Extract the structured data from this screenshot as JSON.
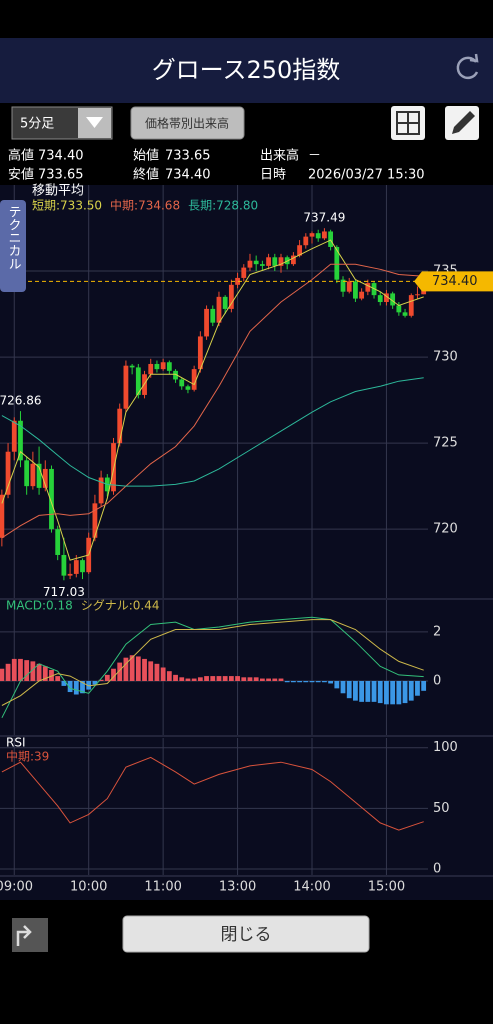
{
  "header": {
    "title": "グロース250指数"
  },
  "toolbar": {
    "period": "5分足",
    "volume_button": "価格帯別出来高"
  },
  "quote": [
    [
      {
        "label": "高値",
        "value": "734.40"
      },
      {
        "label": "始値",
        "value": "733.65"
      },
      {
        "label": "出来高",
        "value": "－"
      }
    ],
    [
      {
        "label": "安値",
        "value": "733.65"
      },
      {
        "label": "終値",
        "value": "734.40"
      },
      {
        "label": "日時",
        "value": "2026/03/27 15:30"
      }
    ]
  ],
  "side_tab": "テクニカル",
  "close_button": "閉じる",
  "chart_data": [
    {
      "type": "candlestick",
      "title": "移動平均",
      "xlim": [
        -0.3,
        68.7
      ],
      "xticks": [
        {
          "value": 2,
          "label": "09:00"
        },
        {
          "value": 14,
          "label": "10:00"
        },
        {
          "value": 26,
          "label": "11:00"
        },
        {
          "value": 38,
          "label": "13:00"
        },
        {
          "value": 50,
          "label": "14:00"
        },
        {
          "value": 62,
          "label": "15:00"
        }
      ],
      "ylim": [
        716,
        740
      ],
      "yticks": [
        720,
        725,
        730,
        735
      ],
      "grid": true,
      "colors": {
        "up": "#f04a2e",
        "down": "#27d23a"
      },
      "open": [
        719.5,
        722.0,
        724.5,
        726.3,
        724.0,
        722.5,
        723.8,
        722.4,
        723.5,
        720.0,
        718.5,
        717.3,
        717.4,
        718.2,
        717.5,
        719.5,
        721.5,
        723.0,
        722.2,
        725.0,
        727.0,
        729.5,
        729.4,
        727.8,
        729.0,
        729.6,
        729.3,
        729.7,
        729.2,
        728.7,
        728.3,
        728.1,
        729.3,
        731.2,
        732.8,
        732.0,
        733.5,
        732.8,
        734.2,
        734.6,
        735.2,
        735.6,
        735.4,
        735.3,
        735.8,
        735.3,
        735.8,
        735.4,
        735.9,
        736.5,
        737.0,
        737.2,
        736.9,
        737.3,
        736.4,
        734.5,
        733.8,
        734.4,
        733.4,
        733.8,
        734.3,
        733.6,
        733.2,
        733.7,
        733.0,
        732.6,
        732.4,
        733.6,
        733.65
      ],
      "high": [
        722.3,
        725.0,
        726.5,
        726.86,
        724.2,
        724.5,
        724.8,
        724.0,
        723.7,
        720.2,
        719.5,
        718.0,
        718.5,
        718.3,
        719.8,
        722.0,
        723.4,
        723.2,
        725.3,
        727.3,
        729.8,
        729.6,
        729.6,
        729.2,
        729.9,
        729.8,
        729.9,
        729.8,
        729.3,
        728.8,
        728.4,
        729.5,
        731.5,
        733.0,
        733.0,
        733.8,
        733.6,
        734.5,
        734.9,
        735.4,
        736.0,
        735.9,
        735.6,
        736.0,
        736.0,
        736.0,
        735.9,
        736.1,
        736.8,
        737.2,
        737.3,
        737.4,
        737.49,
        737.4,
        736.5,
        734.7,
        734.6,
        734.5,
        734.0,
        734.5,
        734.4,
        733.8,
        733.9,
        733.8,
        733.2,
        732.8,
        733.7,
        734.1,
        734.4
      ],
      "low": [
        719.0,
        721.8,
        724.0,
        723.6,
        722.0,
        722.3,
        722.0,
        722.2,
        719.8,
        718.2,
        717.03,
        717.1,
        717.2,
        717.1,
        717.4,
        719.3,
        721.3,
        721.9,
        722.0,
        724.8,
        726.8,
        729.0,
        727.6,
        727.6,
        728.8,
        729.1,
        729.2,
        729.0,
        728.5,
        728.1,
        727.9,
        728.0,
        729.1,
        731.0,
        731.8,
        731.8,
        732.5,
        732.6,
        734.0,
        734.4,
        735.0,
        735.0,
        735.0,
        735.1,
        735.0,
        734.9,
        735.1,
        735.3,
        735.8,
        736.3,
        736.6,
        736.7,
        736.8,
        736.2,
        734.3,
        733.5,
        733.7,
        733.2,
        733.3,
        733.6,
        733.4,
        733.0,
        733.0,
        732.8,
        732.4,
        732.3,
        732.3,
        733.4,
        733.65
      ],
      "close": [
        722.0,
        724.5,
        726.3,
        724.0,
        722.5,
        723.8,
        722.4,
        723.5,
        720.0,
        718.5,
        717.3,
        717.4,
        718.2,
        717.5,
        719.5,
        721.5,
        723.0,
        722.2,
        725.0,
        727.0,
        729.5,
        729.4,
        727.8,
        729.0,
        729.6,
        729.3,
        729.7,
        729.2,
        728.7,
        728.3,
        728.1,
        729.3,
        731.2,
        732.8,
        732.0,
        733.5,
        732.8,
        734.2,
        734.6,
        735.2,
        735.6,
        735.4,
        735.3,
        735.8,
        735.3,
        735.8,
        735.4,
        735.9,
        736.5,
        737.0,
        737.2,
        736.9,
        737.3,
        736.4,
        734.5,
        733.8,
        734.4,
        733.4,
        733.8,
        734.3,
        733.6,
        733.2,
        733.7,
        733.0,
        732.6,
        732.4,
        733.6,
        733.65,
        734.4
      ],
      "series": [
        {
          "name": "短期:733.50",
          "color": "#d8d24a",
          "x": [
            0,
            3,
            6,
            9,
            11,
            14,
            17,
            20,
            24,
            28,
            31,
            35,
            40,
            45,
            50,
            53,
            57,
            61,
            64,
            68
          ],
          "values": [
            721.5,
            724.5,
            723.6,
            720.5,
            718.2,
            718.5,
            721.8,
            726.8,
            729.0,
            729.0,
            728.4,
            732.0,
            734.8,
            735.4,
            736.3,
            736.8,
            734.5,
            733.8,
            733.0,
            733.5
          ]
        },
        {
          "name": "中期:734.68",
          "color": "#e2654a",
          "x": [
            0,
            3,
            6,
            9,
            11,
            14,
            17,
            20,
            24,
            28,
            31,
            35,
            40,
            45,
            50,
            53,
            57,
            61,
            64,
            68
          ],
          "values": [
            719.5,
            720.2,
            720.8,
            720.9,
            720.8,
            720.9,
            721.5,
            722.5,
            723.8,
            724.8,
            726.0,
            728.3,
            731.5,
            733.2,
            734.5,
            735.4,
            735.4,
            735.1,
            734.8,
            734.7
          ]
        },
        {
          "name": "長期:728.80",
          "color": "#2db89a",
          "x": [
            0,
            3,
            6,
            9,
            11,
            14,
            17,
            20,
            24,
            28,
            31,
            35,
            40,
            45,
            50,
            53,
            57,
            61,
            64,
            68
          ],
          "values": [
            726.6,
            726.0,
            725.2,
            724.3,
            723.7,
            723.0,
            722.6,
            722.5,
            722.5,
            722.6,
            722.8,
            723.5,
            724.6,
            725.7,
            726.8,
            727.4,
            728.0,
            728.3,
            728.6,
            728.8
          ]
        }
      ],
      "current": {
        "value": 734.4,
        "label": "734.40",
        "color": "#f5b800"
      },
      "annotations": [
        {
          "x": 52,
          "y": 737.49
        },
        {
          "x": 3,
          "y": 726.86
        },
        {
          "x": 10,
          "y": 717.03
        }
      ]
    },
    {
      "type": "macd",
      "xlim": [
        -0.3,
        68.7
      ],
      "ylim": [
        -2.2,
        3.3
      ],
      "yticks": [
        0,
        2
      ],
      "grid": true,
      "histogram": {
        "colors": {
          "positive": "#e8505a",
          "negative": "#3b97e6"
        },
        "values": [
          0.5,
          0.7,
          0.9,
          0.9,
          0.85,
          0.8,
          0.7,
          0.6,
          0.45,
          0.2,
          -0.2,
          -0.45,
          -0.55,
          -0.5,
          -0.35,
          -0.15,
          0.05,
          0.25,
          0.5,
          0.75,
          0.95,
          1.05,
          1.0,
          0.9,
          0.8,
          0.7,
          0.55,
          0.4,
          0.25,
          0.15,
          0.1,
          0.1,
          0.15,
          0.2,
          0.2,
          0.2,
          0.2,
          0.2,
          0.2,
          0.15,
          0.15,
          0.15,
          0.1,
          0.1,
          0.1,
          0.1,
          -0.05,
          -0.05,
          -0.05,
          -0.05,
          -0.05,
          -0.05,
          -0.05,
          -0.1,
          -0.3,
          -0.5,
          -0.7,
          -0.8,
          -0.85,
          -0.85,
          -0.85,
          -0.9,
          -0.95,
          -0.95,
          -0.95,
          -0.9,
          -0.8,
          -0.6,
          -0.4
        ]
      },
      "series": [
        {
          "name": "MACD:0.18",
          "color": "#33c07a",
          "x": [
            0,
            3,
            6,
            9,
            11,
            14,
            17,
            20,
            24,
            28,
            31,
            35,
            40,
            45,
            50,
            53,
            57,
            61,
            64,
            68
          ],
          "values": [
            -1.5,
            0.0,
            0.7,
            0.4,
            -0.3,
            -0.5,
            0.4,
            1.5,
            2.3,
            2.4,
            2.1,
            2.2,
            2.4,
            2.5,
            2.6,
            2.5,
            1.6,
            0.6,
            0.25,
            0.18
          ]
        },
        {
          "name": "シグナル:0.44",
          "color": "#cdb84a",
          "x": [
            0,
            3,
            6,
            9,
            11,
            14,
            17,
            20,
            24,
            28,
            31,
            35,
            40,
            45,
            50,
            53,
            57,
            61,
            64,
            68
          ],
          "values": [
            -1.0,
            -0.6,
            0.0,
            0.3,
            0.2,
            -0.2,
            -0.1,
            0.7,
            1.7,
            2.1,
            2.1,
            2.1,
            2.3,
            2.4,
            2.5,
            2.5,
            2.1,
            1.3,
            0.8,
            0.44
          ]
        }
      ]
    },
    {
      "type": "line",
      "title": "RSI",
      "xlim": [
        -0.3,
        68.7
      ],
      "ylim": [
        -5,
        108
      ],
      "yticks": [
        0,
        50,
        100
      ],
      "grid": true,
      "series": [
        {
          "name": "中期:39",
          "color": "#d9533c",
          "x": [
            0,
            3,
            6,
            9,
            11,
            14,
            17,
            20,
            24,
            28,
            31,
            35,
            40,
            45,
            50,
            53,
            57,
            61,
            64,
            68
          ],
          "values": [
            80,
            88,
            70,
            52,
            38,
            45,
            58,
            84,
            92,
            80,
            70,
            78,
            85,
            88,
            82,
            72,
            55,
            38,
            32,
            39
          ]
        }
      ]
    }
  ]
}
